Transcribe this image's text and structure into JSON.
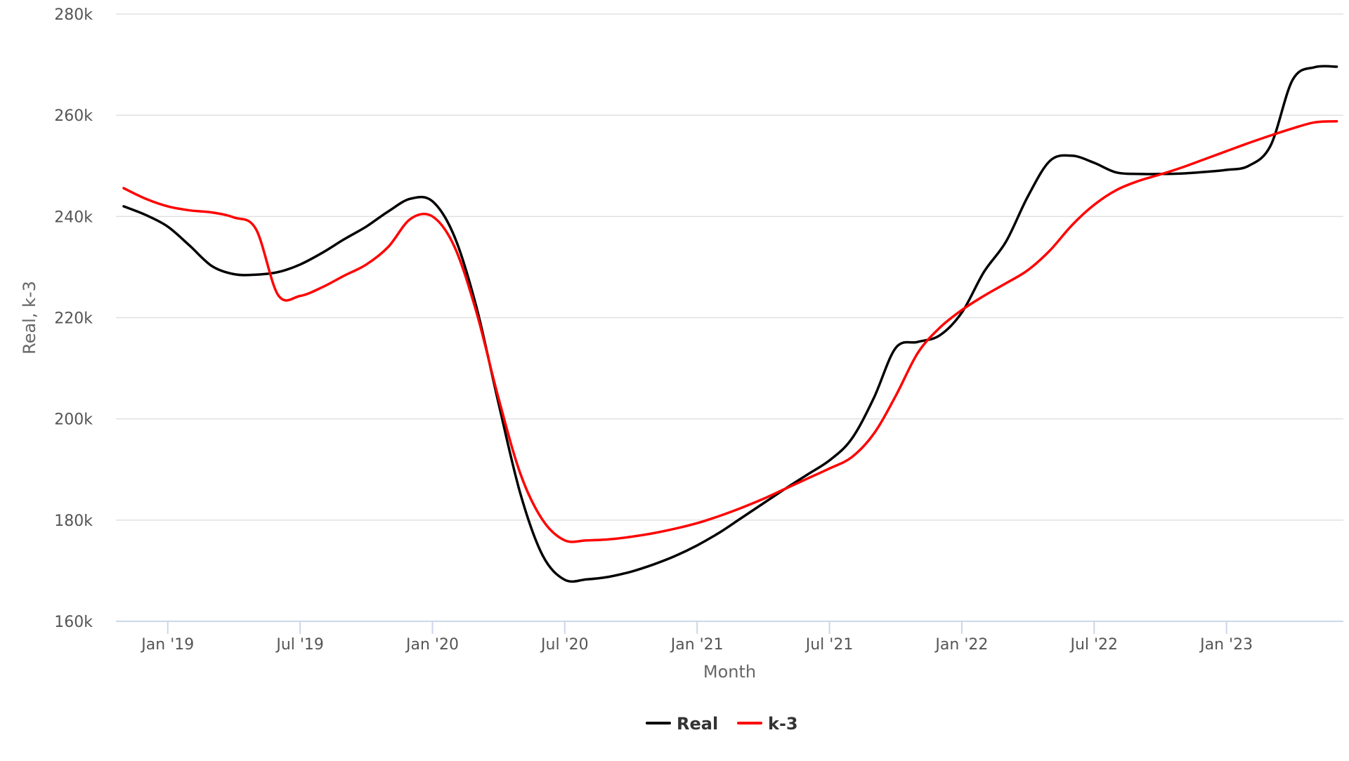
{
  "chart_data": {
    "type": "line",
    "title": "",
    "xlabel": "Month",
    "ylabel": "Real, k-3",
    "ylim": [
      160000,
      280000
    ],
    "y_ticks": [
      {
        "value": 160000,
        "label": "160k"
      },
      {
        "value": 180000,
        "label": "180k"
      },
      {
        "value": 200000,
        "label": "200k"
      },
      {
        "value": 220000,
        "label": "220k"
      },
      {
        "value": 240000,
        "label": "240k"
      },
      {
        "value": 260000,
        "label": "260k"
      },
      {
        "value": 280000,
        "label": "280k"
      }
    ],
    "x_ticks": [
      {
        "value": "2019-01",
        "label": "Jan '19"
      },
      {
        "value": "2019-07",
        "label": "Jul '19"
      },
      {
        "value": "2020-01",
        "label": "Jan '20"
      },
      {
        "value": "2020-07",
        "label": "Jul '20"
      },
      {
        "value": "2021-01",
        "label": "Jan '21"
      },
      {
        "value": "2021-07",
        "label": "Jul '21"
      },
      {
        "value": "2022-01",
        "label": "Jan '22"
      },
      {
        "value": "2022-07",
        "label": "Jul '22"
      },
      {
        "value": "2023-01",
        "label": "Jan '23"
      }
    ],
    "x": [
      "2018-11",
      "2018-12",
      "2019-01",
      "2019-02",
      "2019-03",
      "2019-04",
      "2019-05",
      "2019-06",
      "2019-07",
      "2019-08",
      "2019-09",
      "2019-10",
      "2019-11",
      "2019-12",
      "2020-01",
      "2020-02",
      "2020-03",
      "2020-04",
      "2020-05",
      "2020-06",
      "2020-07",
      "2020-08",
      "2020-09",
      "2020-10",
      "2020-11",
      "2020-12",
      "2021-01",
      "2021-02",
      "2021-03",
      "2021-04",
      "2021-05",
      "2021-06",
      "2021-07",
      "2021-08",
      "2021-09",
      "2021-10",
      "2021-11",
      "2021-12",
      "2022-01",
      "2022-02",
      "2022-03",
      "2022-04",
      "2022-05",
      "2022-06",
      "2022-07",
      "2022-08",
      "2022-09",
      "2022-10",
      "2022-11",
      "2022-12",
      "2023-01",
      "2023-02",
      "2023-03",
      "2023-04",
      "2023-05",
      "2023-06"
    ],
    "series": [
      {
        "name": "Real",
        "color": "#000000",
        "values": [
          242000,
          240300,
          238000,
          234200,
          230200,
          228600,
          228500,
          229000,
          230500,
          232800,
          235500,
          238000,
          241000,
          243500,
          243000,
          236000,
          222000,
          203000,
          185000,
          173000,
          168200,
          168300,
          168800,
          169800,
          171200,
          172900,
          175000,
          177500,
          180400,
          183300,
          186200,
          189000,
          191800,
          196000,
          204000,
          214000,
          215200,
          216500,
          221000,
          229000,
          235000,
          244000,
          251000,
          252000,
          250600,
          248700,
          248400,
          248400,
          248500,
          248800,
          249200,
          250000,
          254000,
          267000,
          269500,
          269600
        ]
      },
      {
        "name": "k-3",
        "color": "#ff0000",
        "values": [
          245600,
          243500,
          242000,
          241200,
          240800,
          239800,
          237500,
          224500,
          224300,
          226000,
          228300,
          230500,
          234000,
          239500,
          240000,
          234000,
          221000,
          204000,
          189000,
          180000,
          176000,
          176000,
          176200,
          176700,
          177400,
          178300,
          179400,
          180800,
          182400,
          184200,
          186200,
          188200,
          190200,
          192400,
          197000,
          204500,
          213000,
          218000,
          221500,
          224300,
          226800,
          229400,
          233300,
          238300,
          242300,
          245200,
          247000,
          248300,
          249700,
          251300,
          252900,
          254500,
          256000,
          257400,
          258600,
          258800
        ]
      }
    ],
    "legend_position": "bottom-center",
    "grid": "horizontal"
  }
}
